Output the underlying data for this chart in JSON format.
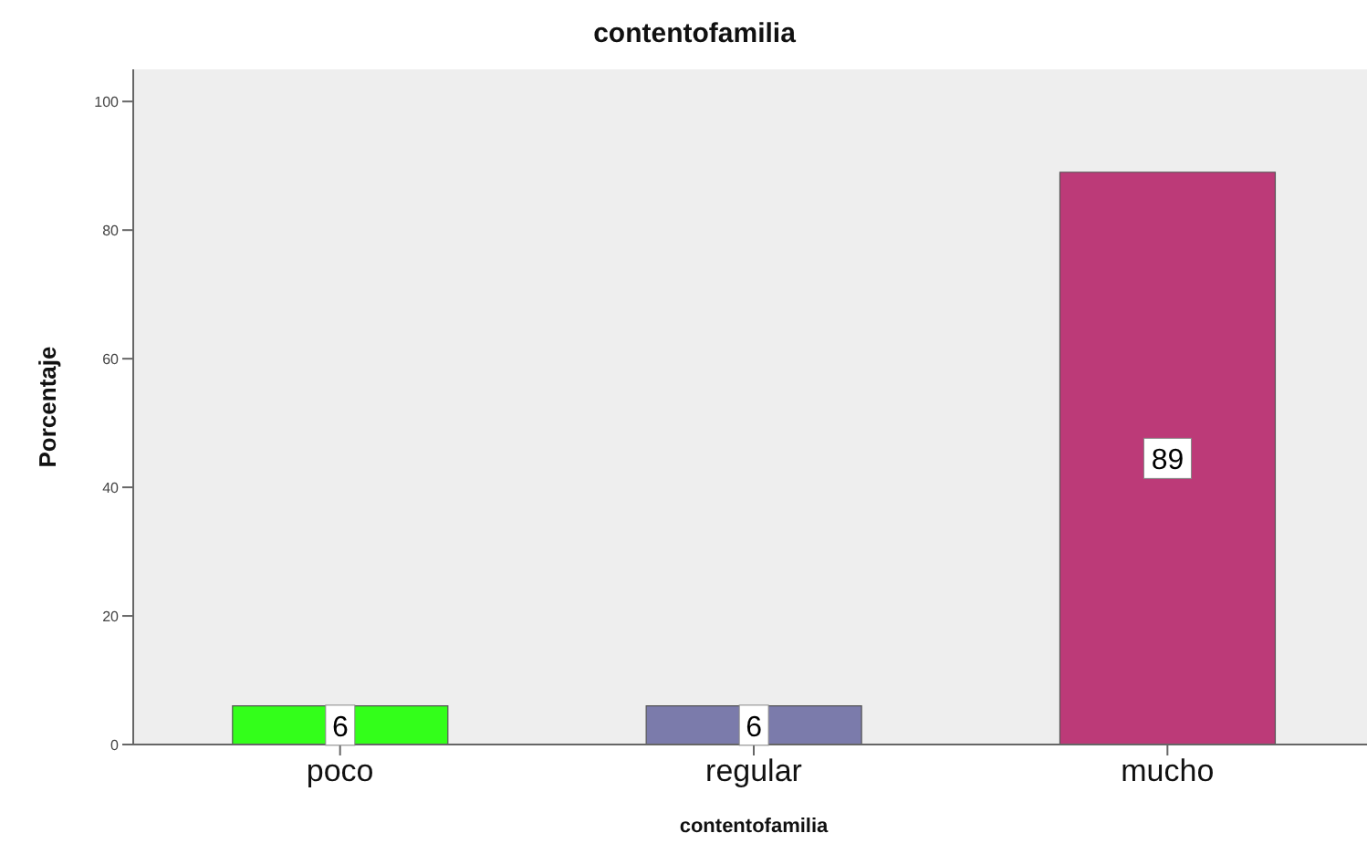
{
  "chart_data": {
    "type": "bar",
    "title": "contentofamilia",
    "xlabel": "contentofamilia",
    "ylabel": "Porcentaje",
    "categories": [
      "poco",
      "regular",
      "mucho"
    ],
    "values": [
      6,
      6,
      89
    ],
    "colors": [
      "#33ff1a",
      "#7b7bab",
      "#bc3a78"
    ],
    "ylim": [
      0,
      105
    ],
    "yticks": [
      0,
      20,
      40,
      60,
      80,
      100
    ],
    "data_labels": true
  }
}
